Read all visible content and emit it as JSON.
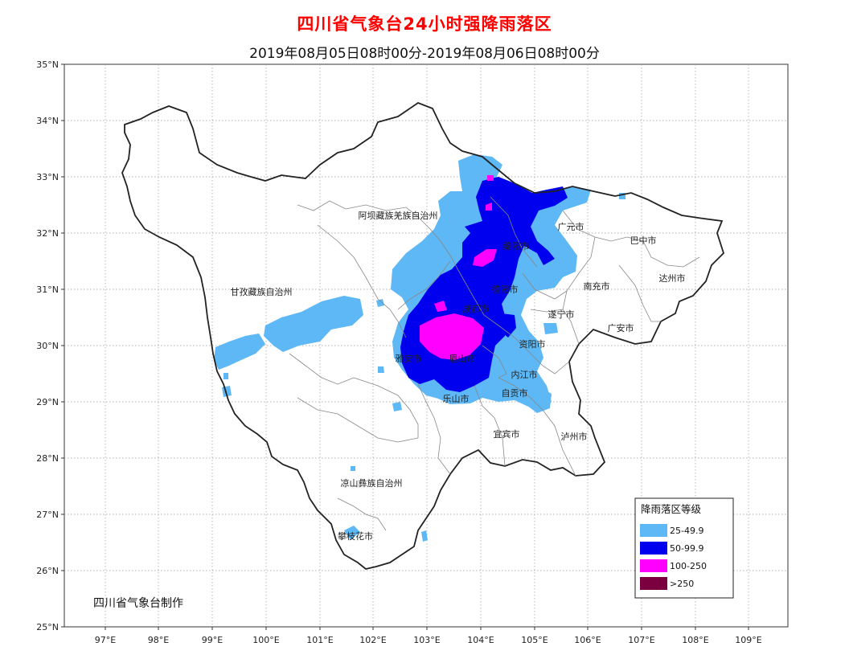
{
  "title": "四川省气象台24小时强降雨落区",
  "subtitle": "2019年08月05日08时00分-2019年08月06日08时00分",
  "title_color": "#ff0000",
  "credit": "四川省气象台制作",
  "latitudes": [
    "35°N",
    "34°N",
    "33°N",
    "32°N",
    "31°N",
    "30°N",
    "29°N",
    "28°N",
    "27°N",
    "26°N",
    "25°N"
  ],
  "longitudes": [
    "97°E",
    "98°E",
    "99°E",
    "100°E",
    "101°E",
    "102°E",
    "103°E",
    "104°E",
    "105°E",
    "106°E",
    "107°E",
    "108°E",
    "109°E"
  ],
  "places": [
    "阿坝藏族羌族自治州",
    "广元市",
    "巴中市",
    "绵阳市",
    "达州市",
    "甘孜藏族自治州",
    "德阳市",
    "南充市",
    "成都市",
    "遂宁市",
    "广安市",
    "雅安市",
    "眉山市",
    "资阳市",
    "内江市",
    "乐山市",
    "自贡市",
    "宜宾市",
    "泸州市",
    "凉山彝族自治州",
    "攀枝花市"
  ],
  "legend": {
    "title": "降雨落区等级",
    "items": [
      {
        "label": "25-49.9",
        "color": "#5db8f5"
      },
      {
        "label": "50-99.9",
        "color": "#0000ee"
      },
      {
        "label": "100-250",
        "color": "#ff00ff"
      },
      {
        "label": ">250",
        "color": "#7a0040"
      }
    ]
  }
}
